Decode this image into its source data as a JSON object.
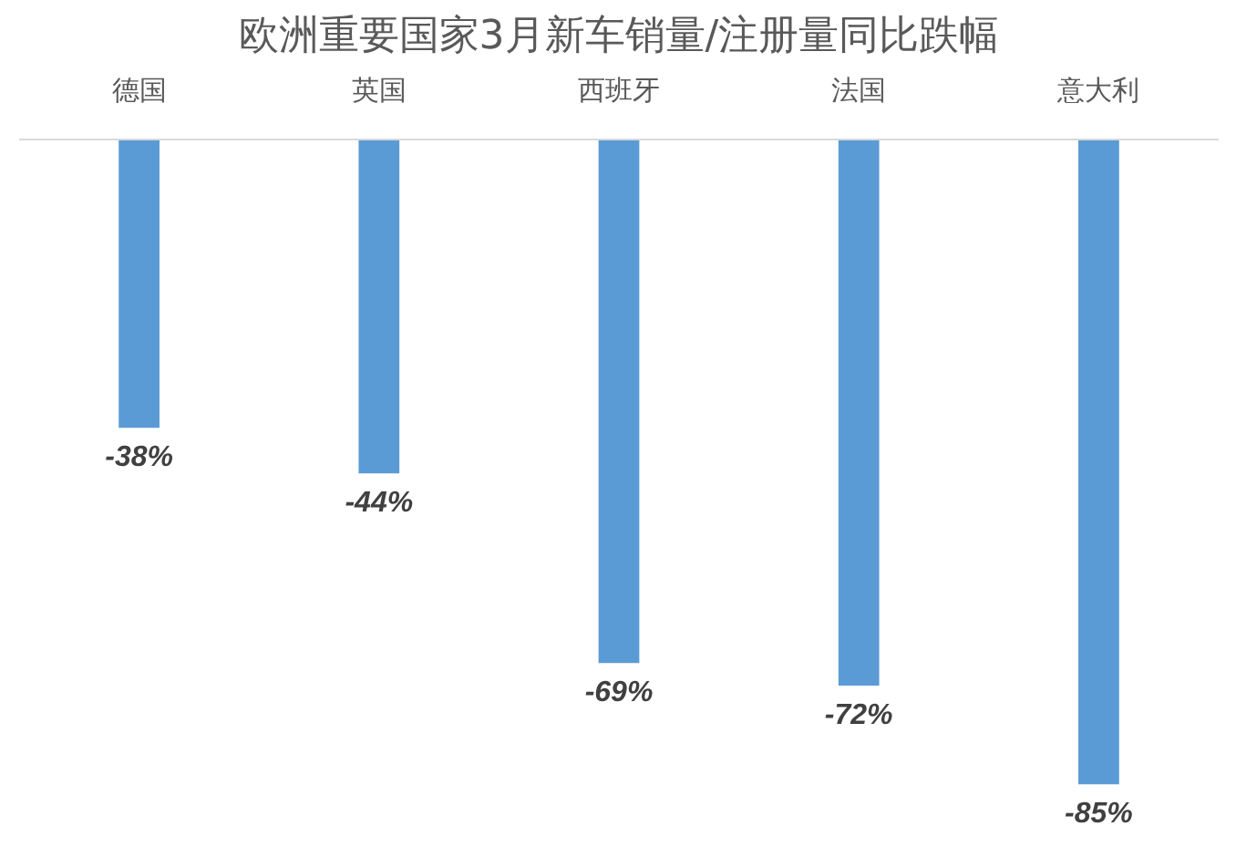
{
  "chart_data": {
    "type": "bar",
    "title": "欧洲重要国家3月新车销量/注册量同比跌幅",
    "categories": [
      "德国",
      "英国",
      "西班牙",
      "法国",
      "意大利"
    ],
    "values": [
      -38,
      -44,
      -69,
      -72,
      -85
    ],
    "value_labels": [
      "-38%",
      "-44%",
      "-69%",
      "-72%",
      "-85%"
    ],
    "color": "#5b9bd5",
    "grid": false,
    "tick_labels": "x"
  }
}
